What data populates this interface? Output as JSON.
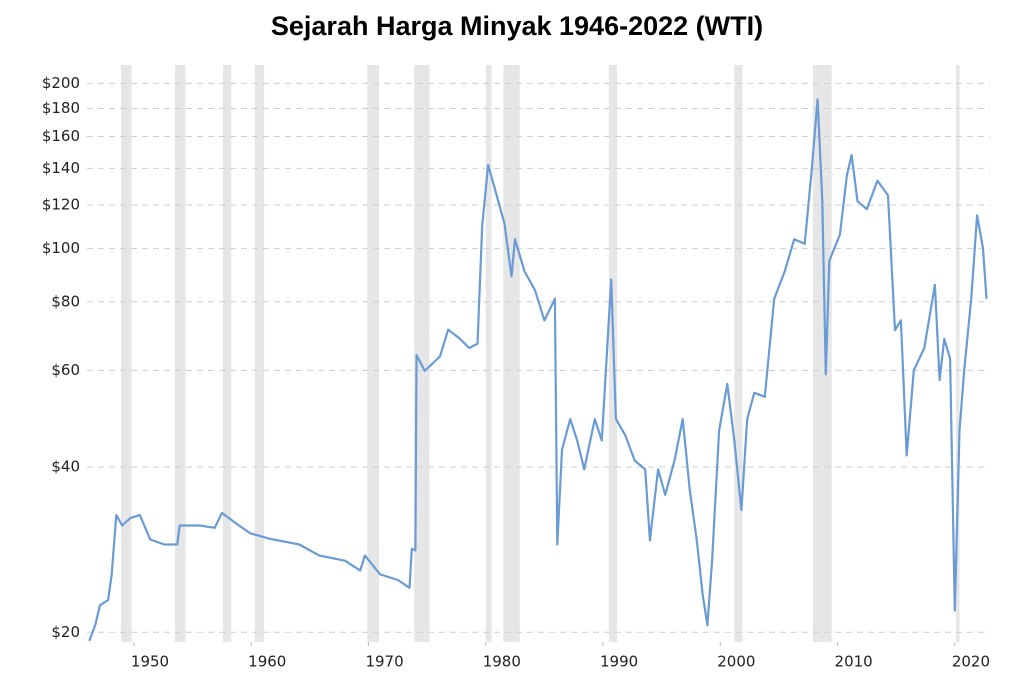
{
  "chart_data": {
    "type": "line",
    "title": "Sejarah Harga Minyak 1946-2022 (WTI)",
    "x": [
      1946.2,
      1946.7,
      1947.1,
      1947.8,
      1948.1,
      1948.5,
      1949.0,
      1949.7,
      1950.5,
      1951.4,
      1952.6,
      1953.7,
      1953.9,
      1955.6,
      1956.9,
      1957.5,
      1958.6,
      1959.9,
      1961.6,
      1964.1,
      1965.8,
      1968.0,
      1969.3,
      1969.7,
      1971.0,
      1972.5,
      1973.5,
      1973.7,
      1974.0,
      1974.1,
      1974.8,
      1976.1,
      1976.8,
      1977.8,
      1978.6,
      1979.3,
      1979.7,
      1980.2,
      1980.8,
      1981.6,
      1982.2,
      1982.5,
      1983.3,
      1984.2,
      1985.0,
      1985.9,
      1986.1,
      1986.5,
      1987.2,
      1987.8,
      1988.4,
      1989.3,
      1989.9,
      1990.7,
      1991.1,
      1991.9,
      1992.7,
      1993.6,
      1994.0,
      1994.7,
      1995.3,
      1996.1,
      1996.8,
      1997.4,
      1998.0,
      1998.5,
      1998.9,
      1999.3,
      1999.9,
      2000.6,
      2001.2,
      2001.8,
      2002.3,
      2002.9,
      2003.8,
      2004.6,
      2005.5,
      2006.3,
      2007.2,
      2007.8,
      2008.3,
      2008.7,
      2009.0,
      2009.3,
      2010.2,
      2010.8,
      2011.2,
      2011.7,
      2012.5,
      2013.4,
      2014.3,
      2014.9,
      2015.4,
      2015.9,
      2016.5,
      2017.4,
      2018.3,
      2018.7,
      2019.1,
      2019.6,
      2020.0,
      2020.4,
      2020.8,
      2021.4,
      2021.9,
      2022.4,
      2022.7
    ],
    "values": [
      19.3,
      20.6,
      22.4,
      22.9,
      25.4,
      32.7,
      31.3,
      32.3,
      32.7,
      29.5,
      28.9,
      28.9,
      31.3,
      31.3,
      31.0,
      33.0,
      31.7,
      30.3,
      29.6,
      28.9,
      27.6,
      27.0,
      25.9,
      27.6,
      25.5,
      24.9,
      24.1,
      28.4,
      28.2,
      64,
      59.9,
      63.6,
      71.2,
      68.5,
      65.9,
      67.1,
      110,
      142,
      128,
      111,
      89,
      104,
      91,
      84,
      74,
      81,
      28.9,
      43,
      48.9,
      44.7,
      39.6,
      48.9,
      44.7,
      87.8,
      48.9,
      45.7,
      41.1,
      39.6,
      29.4,
      39.6,
      35.6,
      41.1,
      48.9,
      36.3,
      29.4,
      23.4,
      20.6,
      27.0,
      46.6,
      56.7,
      44.7,
      33.4,
      48.9,
      54.6,
      53.7,
      81,
      91,
      104,
      102,
      139,
      187,
      122,
      59,
      95,
      106,
      136,
      148,
      122,
      118,
      133,
      125,
      71,
      74,
      42,
      60,
      65.9,
      85.9,
      57.6,
      68.5,
      63,
      21.9,
      46.6,
      60,
      81,
      115,
      100,
      81
    ],
    "color": "#6a9bd4",
    "recessions": [
      [
        1948.9,
        1949.8
      ],
      [
        1953.5,
        1954.4
      ],
      [
        1957.6,
        1958.3
      ],
      [
        1960.3,
        1961.1
      ],
      [
        1969.9,
        1970.9
      ],
      [
        1973.9,
        1975.2
      ],
      [
        1980.0,
        1980.5
      ],
      [
        1981.5,
        1982.9
      ],
      [
        1990.5,
        1991.2
      ],
      [
        2001.2,
        2001.9
      ],
      [
        2007.9,
        2009.5
      ],
      [
        2020.1,
        2020.4
      ]
    ],
    "recession_color": "#e6e6e6",
    "xlim": [
      1946,
      2023
    ],
    "xticks": [
      1950,
      1960,
      1970,
      1980,
      1990,
      2000,
      2010,
      2020
    ],
    "ylim": [
      19.2,
      216
    ],
    "log_y": true,
    "grid": true,
    "yticks": [
      {
        "value": 20,
        "label": "$20"
      },
      {
        "value": 40,
        "label": "$40"
      },
      {
        "value": 60,
        "label": "$60"
      },
      {
        "value": 80,
        "label": "$80"
      },
      {
        "value": 100,
        "label": "$100"
      },
      {
        "value": 120,
        "label": "$120"
      },
      {
        "value": 140,
        "label": "$140"
      },
      {
        "value": 160,
        "label": "$160"
      },
      {
        "value": 180,
        "label": "$180"
      },
      {
        "value": 200,
        "label": "$200"
      }
    ]
  }
}
